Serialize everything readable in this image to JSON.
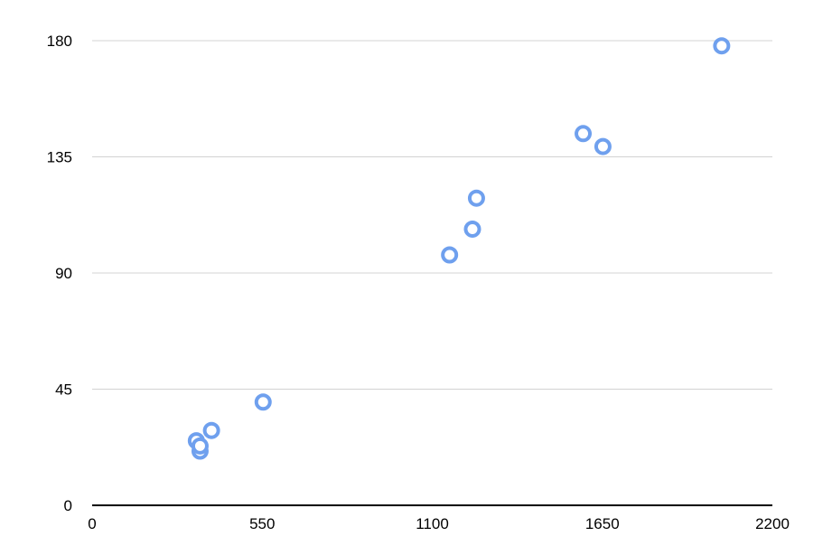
{
  "chart_data": {
    "type": "scatter",
    "title": "",
    "xlabel": "",
    "ylabel": "",
    "xlim": [
      0,
      2200
    ],
    "ylim": [
      0,
      180
    ],
    "x_ticks": [
      "0",
      "550",
      "1100",
      "1650",
      "2200"
    ],
    "y_ticks": [
      "0",
      "45",
      "90",
      "135",
      "180"
    ],
    "grid": "horizontal",
    "legend": "none",
    "marker_color": "#6fa0ee",
    "series": [
      {
        "points": [
          {
            "x": 337,
            "y": 25
          },
          {
            "x": 349,
            "y": 21
          },
          {
            "x": 349,
            "y": 23
          },
          {
            "x": 386,
            "y": 29
          },
          {
            "x": 553,
            "y": 40
          },
          {
            "x": 1156,
            "y": 97
          },
          {
            "x": 1230,
            "y": 107
          },
          {
            "x": 1243,
            "y": 119
          },
          {
            "x": 1588,
            "y": 144
          },
          {
            "x": 1652,
            "y": 139
          },
          {
            "x": 2036,
            "y": 178
          }
        ]
      }
    ]
  }
}
